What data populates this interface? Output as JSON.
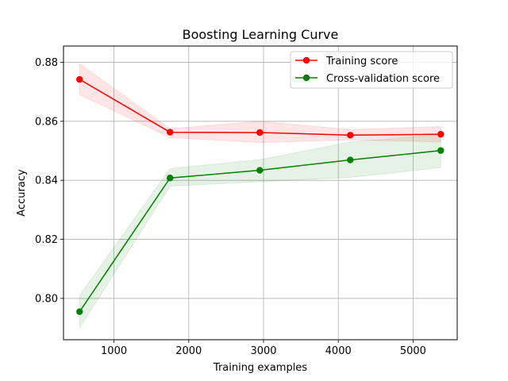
{
  "chart_data": {
    "type": "line",
    "title": "Boosting Learning Curve",
    "xlabel": "Training examples",
    "ylabel": "Accuracy",
    "xlim": [
      325,
      5590
    ],
    "ylim": [
      0.786,
      0.8855
    ],
    "xticks": [
      1000,
      2000,
      3000,
      4000,
      5000
    ],
    "yticks": [
      0.8,
      0.82,
      0.84,
      0.86,
      0.88
    ],
    "xtick_labels": [
      "1000",
      "2000",
      "3000",
      "4000",
      "5000"
    ],
    "ytick_labels": [
      "0.80",
      "0.82",
      "0.84",
      "0.86",
      "0.88"
    ],
    "grid": true,
    "legend_position": "upper-right",
    "x": [
      540,
      1750,
      2950,
      4160,
      5370
    ],
    "series": [
      {
        "name": "Training score",
        "color": "#ff0000",
        "marker": "circle",
        "values": [
          0.8742,
          0.8563,
          0.8562,
          0.8553,
          0.8556
        ],
        "band_lower": [
          0.869,
          0.8545,
          0.8528,
          0.8537,
          0.853
        ],
        "band_upper": [
          0.8795,
          0.8575,
          0.86,
          0.8572,
          0.8582
        ]
      },
      {
        "name": "Cross-validation score",
        "color": "#008000",
        "marker": "circle",
        "values": [
          0.7955,
          0.8408,
          0.8434,
          0.8469,
          0.8501
        ],
        "band_lower": [
          0.79,
          0.838,
          0.8395,
          0.841,
          0.8443
        ],
        "band_upper": [
          0.801,
          0.844,
          0.847,
          0.853,
          0.8555
        ]
      }
    ]
  }
}
